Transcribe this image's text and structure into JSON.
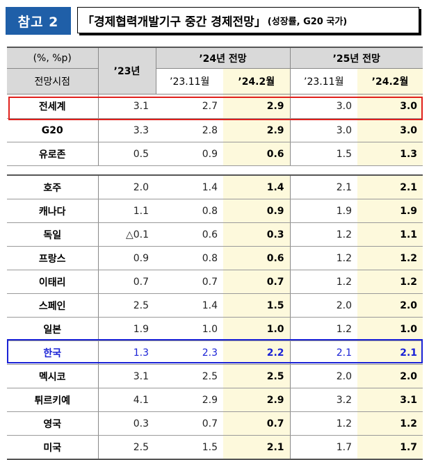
{
  "header": {
    "badge": "참고 2",
    "title": "「경제협력개발기구 중간 경제전망」",
    "subtitle": "(성장률, G20 국가)"
  },
  "table": {
    "units_label": "(%, %p)",
    "base_label": "전망시점",
    "col_23": "’23년",
    "group_24": "’24년 전망",
    "group_25": "’25년 전망",
    "sub_2311": "’23.11월",
    "sub_2402": "’24.2월",
    "rows": [
      {
        "name": "전세계",
        "y23": "3.1",
        "y24_nov": "2.7",
        "y24_feb": "2.9",
        "y25_nov": "3.0",
        "y25_feb": "3.0"
      },
      {
        "name": "G20",
        "y23": "3.3",
        "y24_nov": "2.8",
        "y24_feb": "2.9",
        "y25_nov": "3.0",
        "y25_feb": "3.0"
      },
      {
        "name": "유로존",
        "y23": "0.5",
        "y24_nov": "0.9",
        "y24_feb": "0.6",
        "y25_nov": "1.5",
        "y25_feb": "1.3"
      },
      {
        "name": "호주",
        "y23": "2.0",
        "y24_nov": "1.4",
        "y24_feb": "1.4",
        "y25_nov": "2.1",
        "y25_feb": "2.1"
      },
      {
        "name": "캐나다",
        "y23": "1.1",
        "y24_nov": "0.8",
        "y24_feb": "0.9",
        "y25_nov": "1.9",
        "y25_feb": "1.9"
      },
      {
        "name": "독일",
        "y23": "△0.1",
        "y24_nov": "0.6",
        "y24_feb": "0.3",
        "y25_nov": "1.2",
        "y25_feb": "1.1"
      },
      {
        "name": "프랑스",
        "y23": "0.9",
        "y24_nov": "0.8",
        "y24_feb": "0.6",
        "y25_nov": "1.2",
        "y25_feb": "1.2"
      },
      {
        "name": "이태리",
        "y23": "0.7",
        "y24_nov": "0.7",
        "y24_feb": "0.7",
        "y25_nov": "1.2",
        "y25_feb": "1.2"
      },
      {
        "name": "스페인",
        "y23": "2.5",
        "y24_nov": "1.4",
        "y24_feb": "1.5",
        "y25_nov": "2.0",
        "y25_feb": "2.0"
      },
      {
        "name": "일본",
        "y23": "1.9",
        "y24_nov": "1.0",
        "y24_feb": "1.0",
        "y25_nov": "1.2",
        "y25_feb": "1.0"
      },
      {
        "name": "한국",
        "y23": "1.3",
        "y24_nov": "2.3",
        "y24_feb": "2.2",
        "y25_nov": "2.1",
        "y25_feb": "2.1"
      },
      {
        "name": "멕시코",
        "y23": "3.1",
        "y24_nov": "2.5",
        "y24_feb": "2.5",
        "y25_nov": "2.0",
        "y25_feb": "2.0"
      },
      {
        "name": "튀르키예",
        "y23": "4.1",
        "y24_nov": "2.9",
        "y24_feb": "2.9",
        "y25_nov": "3.2",
        "y25_feb": "3.1"
      },
      {
        "name": "영국",
        "y23": "0.3",
        "y24_nov": "0.7",
        "y24_feb": "0.7",
        "y25_nov": "1.2",
        "y25_feb": "1.2"
      },
      {
        "name": "미국",
        "y23": "2.5",
        "y24_nov": "1.5",
        "y24_feb": "2.1",
        "y25_nov": "1.7",
        "y25_feb": "1.7"
      }
    ]
  },
  "colors": {
    "badge_bg": "#1f5fa8",
    "highlight_col": "#fdf9dc",
    "world_frame": "#e0201c",
    "korea_frame": "#1a22d6"
  }
}
